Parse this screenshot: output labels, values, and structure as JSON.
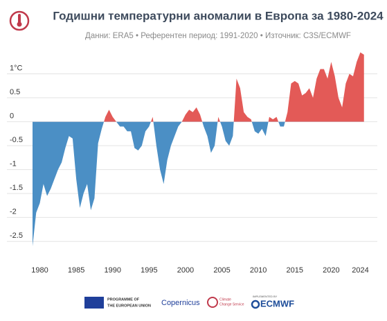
{
  "chart_data": {
    "type": "area",
    "title": "Годишни температурни аномалии в Европа за 1980-2024",
    "subtitle": "Данни: ERA5 • Референтен период: 1991-2020 • Източник: C3S/ECMWF",
    "positive_color": "#e35a57",
    "negative_color": "#4b8fc5",
    "xlim": [
      1979,
      2025
    ],
    "ylim": [
      -2.7,
      1.5
    ],
    "xticks": [
      1980,
      1985,
      1990,
      1995,
      2000,
      2005,
      2010,
      2015,
      2020,
      2024
    ],
    "yticks": [
      {
        "value": 1,
        "label": "1°C"
      },
      0.5,
      0,
      -0.5,
      -1,
      -1.5,
      -2,
      -2.5
    ],
    "grid": true,
    "x": [
      1979,
      1979.5,
      1980,
      1980.5,
      1981,
      1981.5,
      1982,
      1982.5,
      1983,
      1983.5,
      1984,
      1984.5,
      1985,
      1985.5,
      1986,
      1986.5,
      1987,
      1987.5,
      1988,
      1988.5,
      1989,
      1989.5,
      1990,
      1990.5,
      1991,
      1991.5,
      1992,
      1992.5,
      1993,
      1993.5,
      1994,
      1994.5,
      1995,
      1995.5,
      1996,
      1996.5,
      1997,
      1997.5,
      1998,
      1998.5,
      1999,
      1999.5,
      2000,
      2000.5,
      2001,
      2001.5,
      2002,
      2002.5,
      2003,
      2003.5,
      2004,
      2004.5,
      2005,
      2005.5,
      2006,
      2006.5,
      2007,
      2007.5,
      2008,
      2008.5,
      2009,
      2009.5,
      2010,
      2010.5,
      2011,
      2011.5,
      2012,
      2012.5,
      2013,
      2013.5,
      2014,
      2014.5,
      2015,
      2015.5,
      2016,
      2016.5,
      2017,
      2017.5,
      2018,
      2018.5,
      2019,
      2019.5,
      2020,
      2020.5,
      2021,
      2021.5,
      2022,
      2022.5,
      2023,
      2023.5,
      2024,
      2024.5
    ],
    "values": [
      -2.6,
      -1.9,
      -1.7,
      -1.3,
      -1.55,
      -1.4,
      -1.2,
      -1.0,
      -0.85,
      -0.55,
      -0.3,
      -0.35,
      -1.2,
      -1.8,
      -1.5,
      -1.3,
      -1.85,
      -1.6,
      -0.45,
      -0.15,
      0.1,
      0.25,
      0.1,
      0.0,
      -0.1,
      -0.1,
      -0.2,
      -0.2,
      -0.55,
      -0.6,
      -0.5,
      -0.2,
      -0.1,
      0.1,
      -0.5,
      -1.0,
      -1.3,
      -0.8,
      -0.5,
      -0.3,
      -0.1,
      0.0,
      0.15,
      0.25,
      0.2,
      0.3,
      0.15,
      -0.1,
      -0.3,
      -0.65,
      -0.5,
      0.1,
      -0.1,
      -0.4,
      -0.5,
      -0.3,
      0.9,
      0.7,
      0.2,
      0.1,
      0.05,
      -0.2,
      -0.25,
      -0.15,
      -0.3,
      0.1,
      0.05,
      0.1,
      -0.1,
      -0.1,
      0.2,
      0.8,
      0.85,
      0.8,
      0.55,
      0.6,
      0.7,
      0.5,
      0.9,
      1.1,
      1.1,
      0.9,
      1.25,
      0.95,
      0.5,
      0.3,
      0.8,
      1.0,
      0.95,
      1.25,
      1.45,
      1.4
    ]
  },
  "footer": {
    "eu": [
      "PROGRAMME OF",
      "THE EUROPEAN UNION"
    ],
    "copernicus": "Copernicus",
    "c3s": [
      "Climate",
      "Change Service"
    ],
    "implemented": "IMPLEMENTED BY",
    "ecmwf": "ECMWF"
  }
}
